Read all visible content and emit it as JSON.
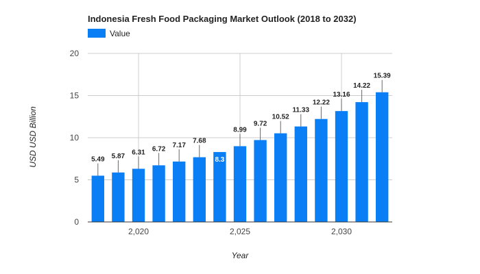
{
  "chart_data": {
    "type": "bar",
    "title": "Indonesia Fresh Food Packaging Market Outlook (2018 to 2032)",
    "xlabel": "Year",
    "ylabel": "USD USD Billion",
    "x": [
      2018,
      2019,
      2020,
      2021,
      2022,
      2023,
      2024,
      2025,
      2026,
      2027,
      2028,
      2029,
      2030,
      2031,
      2032
    ],
    "x_tick_values": [
      2020,
      2025,
      2030
    ],
    "x_tick_labels": [
      "2,020",
      "2,025",
      "2,030"
    ],
    "series": [
      {
        "name": "Value",
        "color": "#0a7ef5",
        "values": [
          5.49,
          5.87,
          6.31,
          6.72,
          7.17,
          7.68,
          8.3,
          8.99,
          9.72,
          10.52,
          11.33,
          12.22,
          13.16,
          14.22,
          15.39
        ],
        "labels": [
          "5.49",
          "5.87",
          "6.31",
          "6.72",
          "7.17",
          "7.68",
          "8.3",
          "8.99",
          "9.72",
          "10.52",
          "11.33",
          "12.22",
          "13.16",
          "14.22",
          "15.39"
        ]
      }
    ],
    "ylim": [
      0,
      20
    ],
    "yticks": [
      0,
      5,
      10,
      15,
      20
    ],
    "grid": true,
    "legend": "top-left"
  }
}
